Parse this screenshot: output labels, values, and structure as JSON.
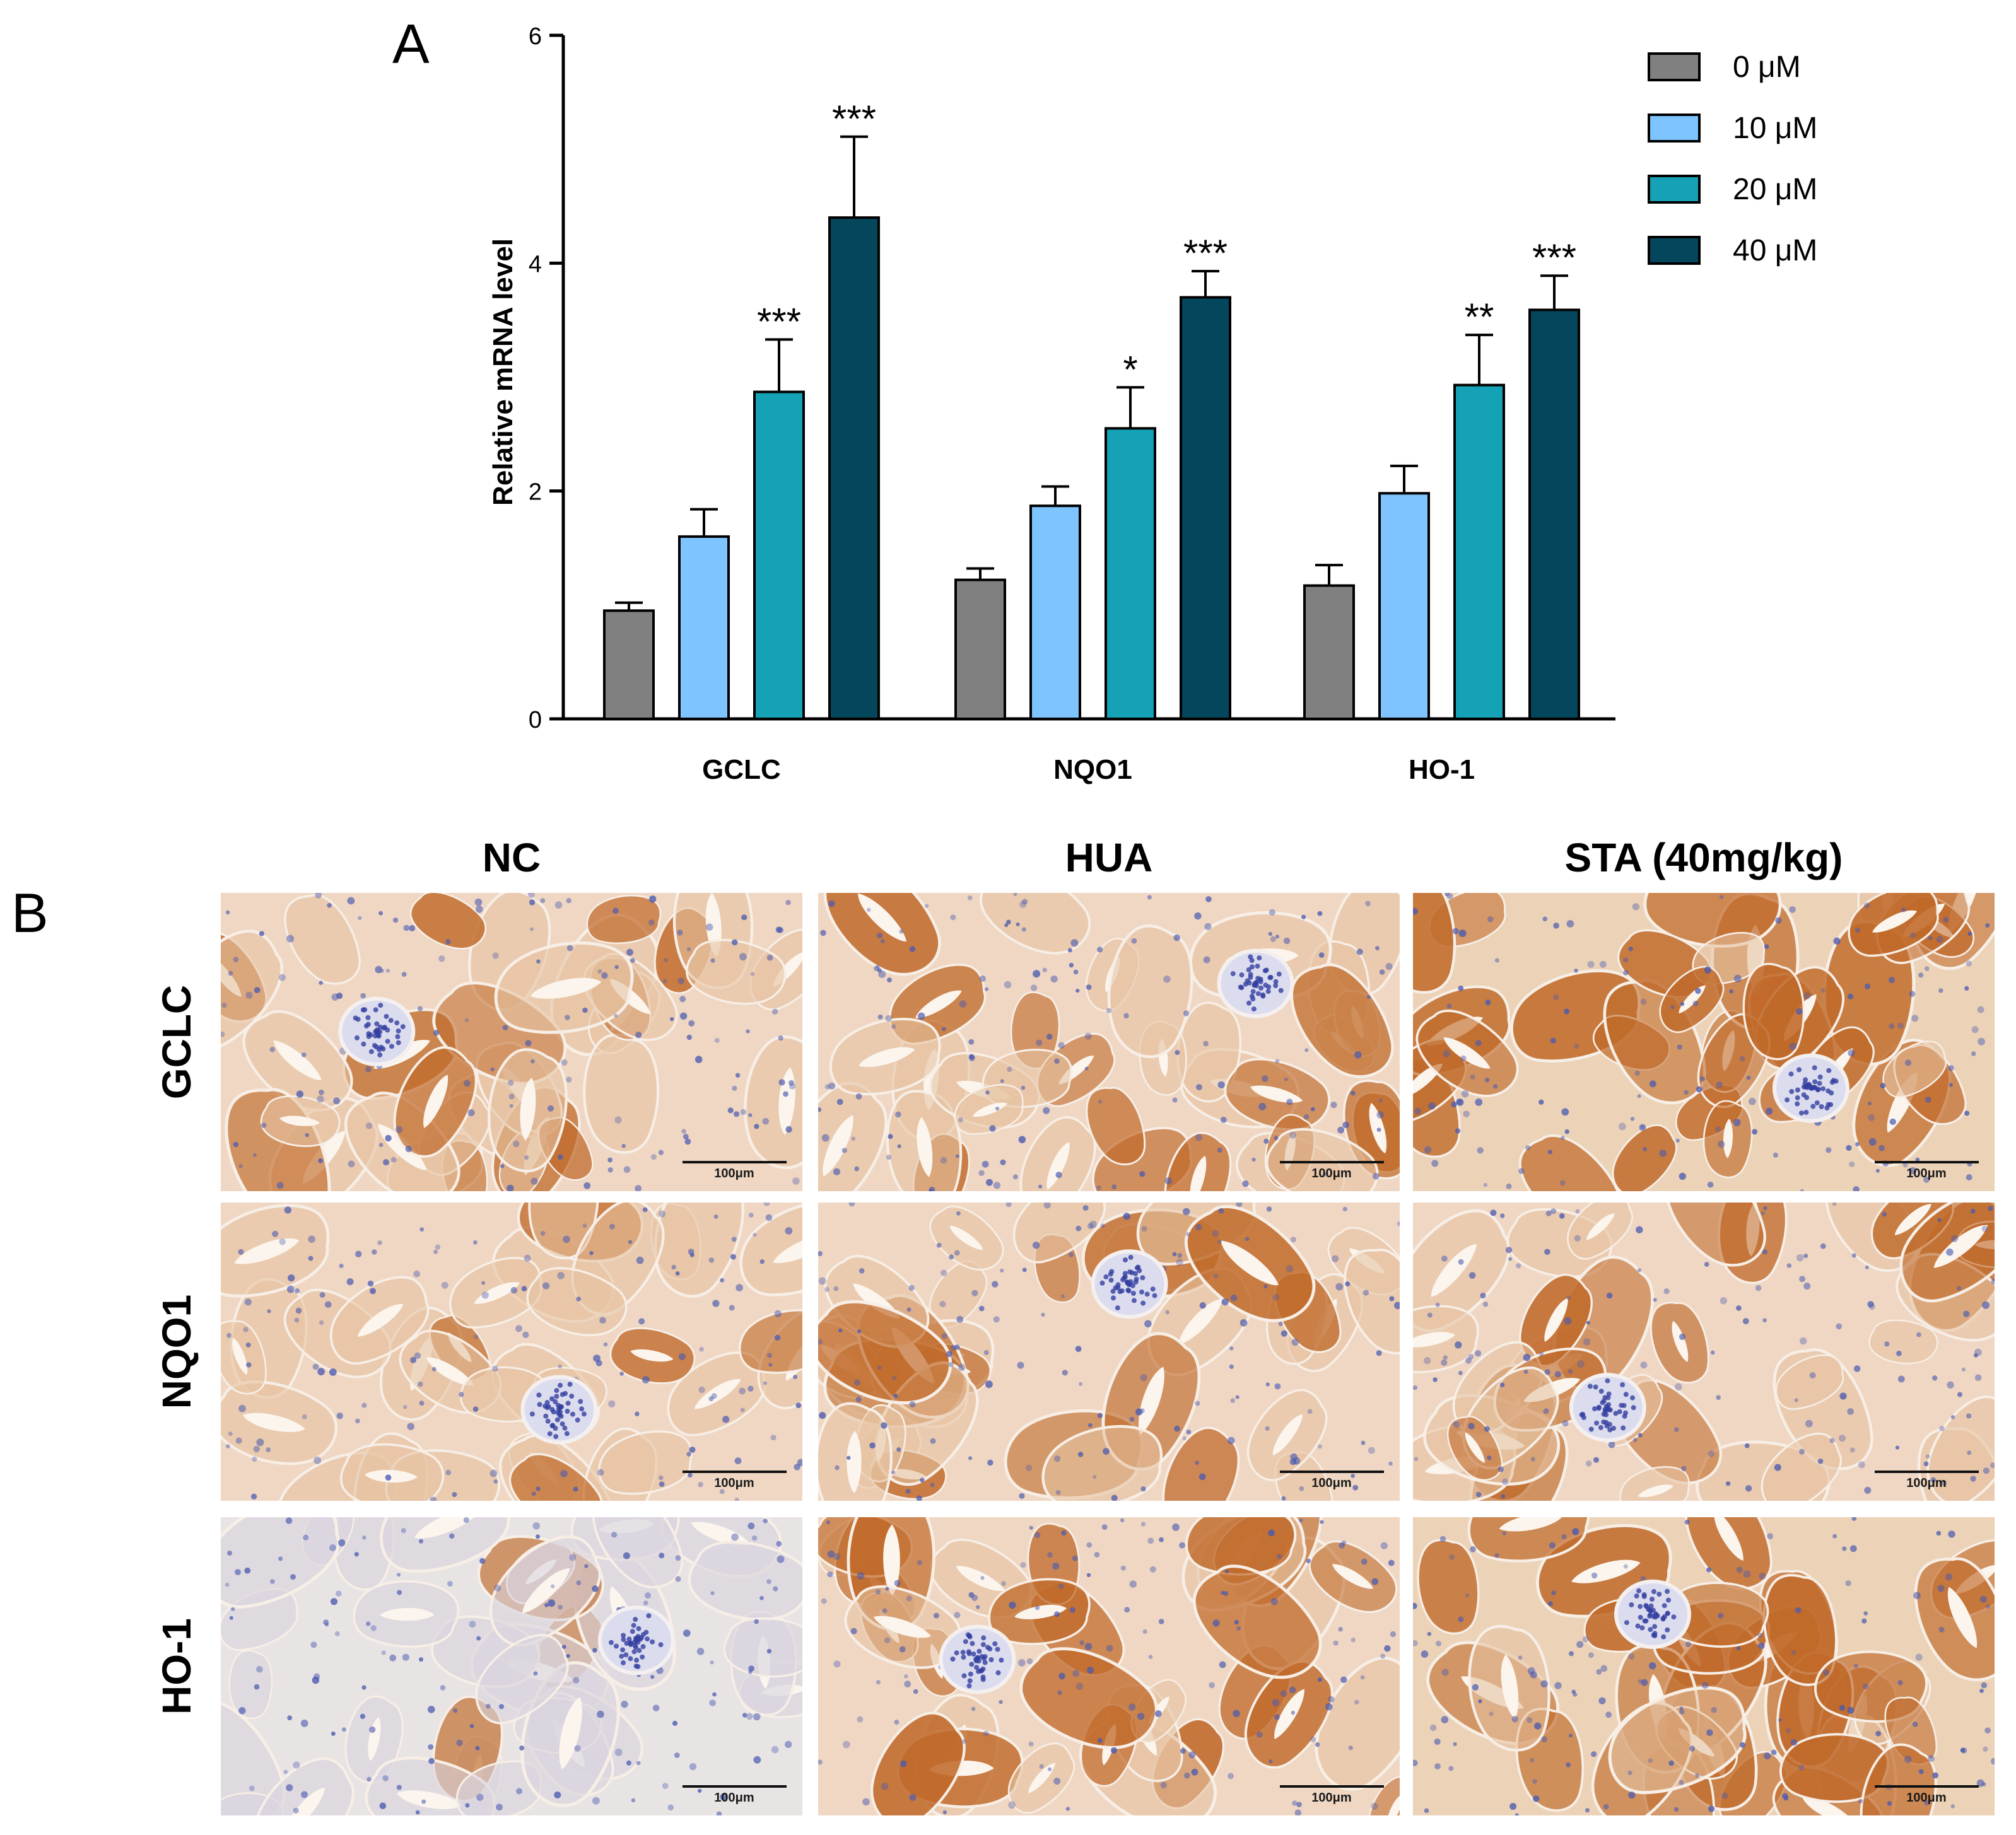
{
  "figure": {
    "panel_a_label": "A",
    "panel_b_label": "B"
  },
  "colors": {
    "0uM": "#808080",
    "10uM": "#7ec4ff",
    "20uM": "#15a2b6",
    "40uM": "#04465b",
    "ihc_background": "#efd7c3",
    "ihc_brown": "#c06a2a",
    "ihc_nuclei": "#4a5ab0"
  },
  "chart_data": {
    "type": "bar",
    "title": "",
    "xlabel": "",
    "ylabel": "Relative mRNA level",
    "ylim": [
      0,
      6
    ],
    "yticks": [
      0,
      2,
      4,
      6
    ],
    "grid": false,
    "legend_position": "top-right",
    "categories": [
      "GCLC",
      "NQO1",
      "HO-1"
    ],
    "series": [
      {
        "name": "0   μM",
        "color": "#808080",
        "values": [
          0.95,
          1.22,
          1.17
        ],
        "errors": [
          0.07,
          0.1,
          0.18
        ],
        "significance": [
          "",
          "",
          ""
        ]
      },
      {
        "name": "10 μM",
        "color": "#7ec4ff",
        "values": [
          1.6,
          1.87,
          1.98
        ],
        "errors": [
          0.24,
          0.17,
          0.24
        ],
        "significance": [
          "",
          "",
          ""
        ]
      },
      {
        "name": "20 μM",
        "color": "#15a2b6",
        "values": [
          2.87,
          2.55,
          2.93
        ],
        "errors": [
          0.46,
          0.36,
          0.44
        ],
        "significance": [
          "***",
          "*",
          "**"
        ]
      },
      {
        "name": "40 μM",
        "color": "#04465b",
        "values": [
          4.4,
          3.7,
          3.59
        ],
        "errors": [
          0.71,
          0.23,
          0.3
        ],
        "significance": [
          "***",
          "***",
          "***"
        ]
      }
    ]
  },
  "panel_b": {
    "columns": [
      "NC",
      "HUA",
      "STA (40mg/kg)"
    ],
    "rows": [
      "GCLC",
      "NQO1",
      "HO-1"
    ],
    "scale_bar_label": "100μm",
    "staining_intensity": [
      [
        0.35,
        0.45,
        0.85
      ],
      [
        0.25,
        0.4,
        0.45
      ],
      [
        0.05,
        0.6,
        0.85
      ]
    ]
  }
}
